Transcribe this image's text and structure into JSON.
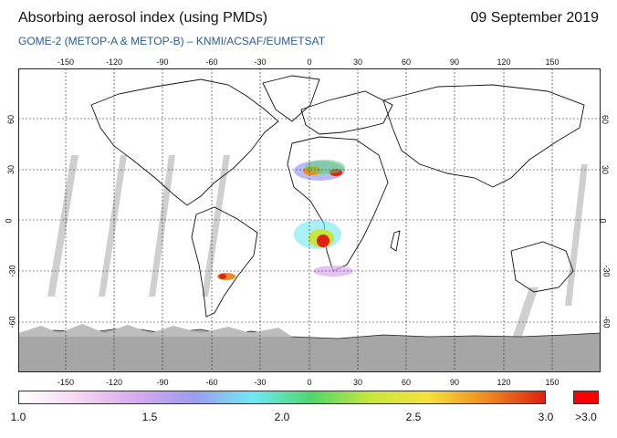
{
  "header": {
    "title": "Absorbing aerosol index (using PMDs)",
    "date": "09 September 2019",
    "subtitle": "GOME-2 (METOP-A & METOP-B)  –  KNMI/ACSAF/EUMETSAT"
  },
  "map": {
    "lon_ticks": [
      "-150",
      "-120",
      "-90",
      "-60",
      "-30",
      "0",
      "30",
      "60",
      "90",
      "120",
      "150"
    ],
    "lat_ticks": [
      "60",
      "30",
      "0",
      "-30",
      "-60"
    ]
  },
  "colorbar": {
    "labels": [
      "1.0",
      "1.5",
      "2.0",
      "2.5",
      "3.0"
    ],
    "over_label": ">3.0",
    "colors": [
      "#ffffff",
      "#f7d6f2",
      "#d8a9f0",
      "#9c9cf0",
      "#6fe8f5",
      "#4dd86a",
      "#c8e63a",
      "#f5e23a",
      "#f08a20",
      "#e02010"
    ],
    "over_color": "#ff0000"
  }
}
